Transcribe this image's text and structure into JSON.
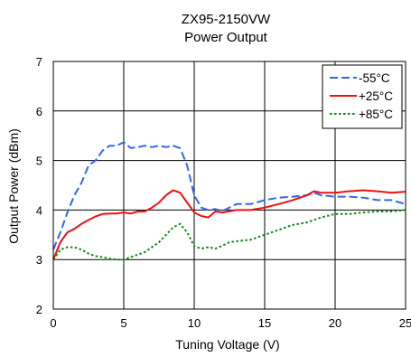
{
  "chart_data": {
    "type": "line",
    "title": "ZX95-2150VW",
    "subtitle": "Power Output",
    "xlabel": "Tuning Voltage (V)",
    "ylabel": "Output Power (dBm)",
    "xlim": [
      0,
      25
    ],
    "ylim": [
      2,
      7
    ],
    "xticks": [
      0,
      5,
      10,
      15,
      20,
      25
    ],
    "yticks": [
      2,
      3,
      4,
      5,
      6,
      7
    ],
    "grid": true,
    "legend_position": "top-right",
    "series": [
      {
        "name": "-55°C",
        "color": "#3366ee",
        "dash": "dash",
        "points": [
          [
            0,
            3.2
          ],
          [
            0.5,
            3.55
          ],
          [
            1,
            3.95
          ],
          [
            1.5,
            4.3
          ],
          [
            2,
            4.55
          ],
          [
            2.5,
            4.9
          ],
          [
            3,
            5.0
          ],
          [
            3.5,
            5.2
          ],
          [
            4,
            5.3
          ],
          [
            4.5,
            5.3
          ],
          [
            5,
            5.37
          ],
          [
            5.5,
            5.25
          ],
          [
            6,
            5.27
          ],
          [
            6.5,
            5.3
          ],
          [
            7,
            5.27
          ],
          [
            7.5,
            5.3
          ],
          [
            8,
            5.27
          ],
          [
            8.5,
            5.3
          ],
          [
            9,
            5.25
          ],
          [
            9.5,
            4.9
          ],
          [
            10,
            4.3
          ],
          [
            10.5,
            4.05
          ],
          [
            11,
            4.0
          ],
          [
            11.5,
            4.02
          ],
          [
            12,
            3.98
          ],
          [
            12.5,
            4.05
          ],
          [
            13,
            4.12
          ],
          [
            14,
            4.12
          ],
          [
            15,
            4.2
          ],
          [
            16,
            4.25
          ],
          [
            17,
            4.27
          ],
          [
            18,
            4.3
          ],
          [
            18.5,
            4.35
          ],
          [
            19,
            4.3
          ],
          [
            20,
            4.27
          ],
          [
            21,
            4.27
          ],
          [
            22,
            4.25
          ],
          [
            23,
            4.2
          ],
          [
            24,
            4.2
          ],
          [
            25,
            4.12
          ]
        ]
      },
      {
        "name": "+25°C",
        "color": "#ee1111",
        "dash": "solid",
        "points": [
          [
            0,
            3.0
          ],
          [
            0.5,
            3.35
          ],
          [
            1,
            3.55
          ],
          [
            1.5,
            3.62
          ],
          [
            2,
            3.72
          ],
          [
            2.5,
            3.8
          ],
          [
            3,
            3.87
          ],
          [
            3.5,
            3.92
          ],
          [
            4,
            3.93
          ],
          [
            4.5,
            3.93
          ],
          [
            5,
            3.95
          ],
          [
            5.5,
            3.93
          ],
          [
            6,
            3.97
          ],
          [
            6.5,
            3.97
          ],
          [
            7,
            4.05
          ],
          [
            7.5,
            4.15
          ],
          [
            8,
            4.3
          ],
          [
            8.5,
            4.4
          ],
          [
            9,
            4.35
          ],
          [
            9.5,
            4.15
          ],
          [
            10,
            3.95
          ],
          [
            10.5,
            3.88
          ],
          [
            11,
            3.85
          ],
          [
            11.5,
            3.97
          ],
          [
            12,
            3.95
          ],
          [
            13,
            4.0
          ],
          [
            14,
            4.0
          ],
          [
            15,
            4.05
          ],
          [
            16,
            4.12
          ],
          [
            17,
            4.2
          ],
          [
            18,
            4.3
          ],
          [
            18.5,
            4.38
          ],
          [
            19,
            4.35
          ],
          [
            20,
            4.35
          ],
          [
            21,
            4.38
          ],
          [
            22,
            4.4
          ],
          [
            23,
            4.38
          ],
          [
            24,
            4.35
          ],
          [
            25,
            4.37
          ]
        ]
      },
      {
        "name": "+85°C",
        "color": "#118811",
        "dash": "dot",
        "points": [
          [
            0,
            3.0
          ],
          [
            0.5,
            3.2
          ],
          [
            1,
            3.25
          ],
          [
            1.5,
            3.25
          ],
          [
            2,
            3.2
          ],
          [
            2.5,
            3.12
          ],
          [
            3,
            3.07
          ],
          [
            3.5,
            3.05
          ],
          [
            4,
            3.02
          ],
          [
            4.5,
            3.0
          ],
          [
            5,
            3.0
          ],
          [
            5.5,
            3.05
          ],
          [
            6,
            3.1
          ],
          [
            6.5,
            3.15
          ],
          [
            7,
            3.25
          ],
          [
            7.5,
            3.35
          ],
          [
            8,
            3.5
          ],
          [
            8.5,
            3.65
          ],
          [
            9,
            3.72
          ],
          [
            9.5,
            3.55
          ],
          [
            10,
            3.27
          ],
          [
            10.5,
            3.22
          ],
          [
            11,
            3.25
          ],
          [
            11.5,
            3.22
          ],
          [
            12,
            3.28
          ],
          [
            12.5,
            3.35
          ],
          [
            13,
            3.37
          ],
          [
            14,
            3.4
          ],
          [
            15,
            3.5
          ],
          [
            16,
            3.6
          ],
          [
            17,
            3.7
          ],
          [
            18,
            3.75
          ],
          [
            19,
            3.85
          ],
          [
            20,
            3.92
          ],
          [
            21,
            3.92
          ],
          [
            22,
            3.95
          ],
          [
            23,
            3.97
          ],
          [
            24,
            3.97
          ],
          [
            25,
            4.0
          ]
        ]
      }
    ]
  }
}
